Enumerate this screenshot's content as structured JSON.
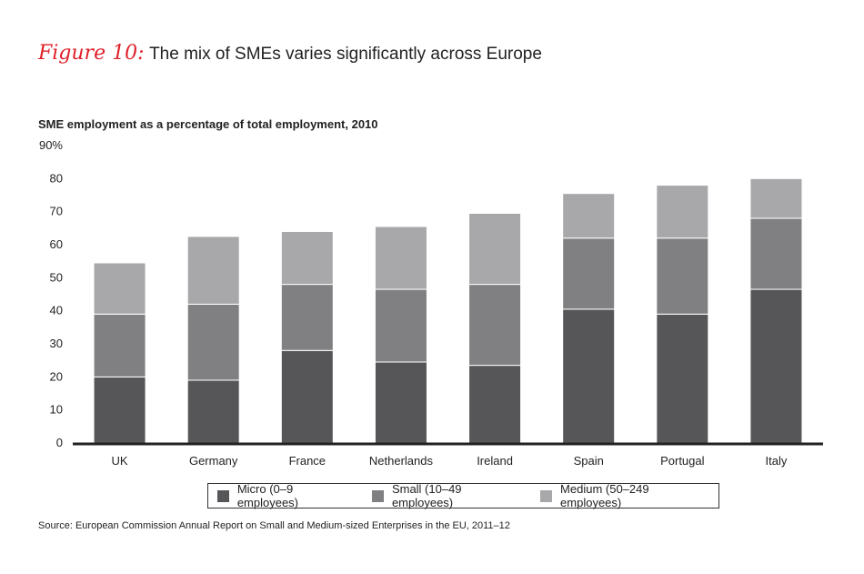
{
  "figure": {
    "label": "Figure 10:",
    "title": "The mix of SMEs varies significantly across Europe"
  },
  "subtitle": "SME employment as a percentage of total employment, 2010",
  "source": "Source: European Commission Annual Report on Small and Medium-sized Enterprises in the EU, 2011–12",
  "colors": {
    "micro": "#565658",
    "small": "#808082",
    "medium": "#a8a8aa",
    "axis": "#222222"
  },
  "chart_data": {
    "type": "bar",
    "stacked": true,
    "categories": [
      "UK",
      "Germany",
      "France",
      "Netherlands",
      "Ireland",
      "Spain",
      "Portugal",
      "Italy"
    ],
    "series": [
      {
        "name": "Micro (0–9 employees)",
        "values": [
          20,
          19,
          28,
          24.5,
          23.5,
          40.5,
          39,
          46.5
        ]
      },
      {
        "name": "Small (10–49 employees)",
        "values": [
          19,
          23,
          20,
          22,
          24.5,
          21.5,
          23,
          21.5
        ]
      },
      {
        "name": "Medium (50–249 employees)",
        "values": [
          15.5,
          20.5,
          16,
          19,
          21.5,
          13.5,
          16,
          12
        ]
      }
    ],
    "ylim": [
      0,
      90
    ],
    "yticks": [
      "0",
      "10",
      "20",
      "30",
      "40",
      "50",
      "60",
      "70",
      "80",
      "90%"
    ],
    "legend_position": "bottom",
    "grid": false
  }
}
